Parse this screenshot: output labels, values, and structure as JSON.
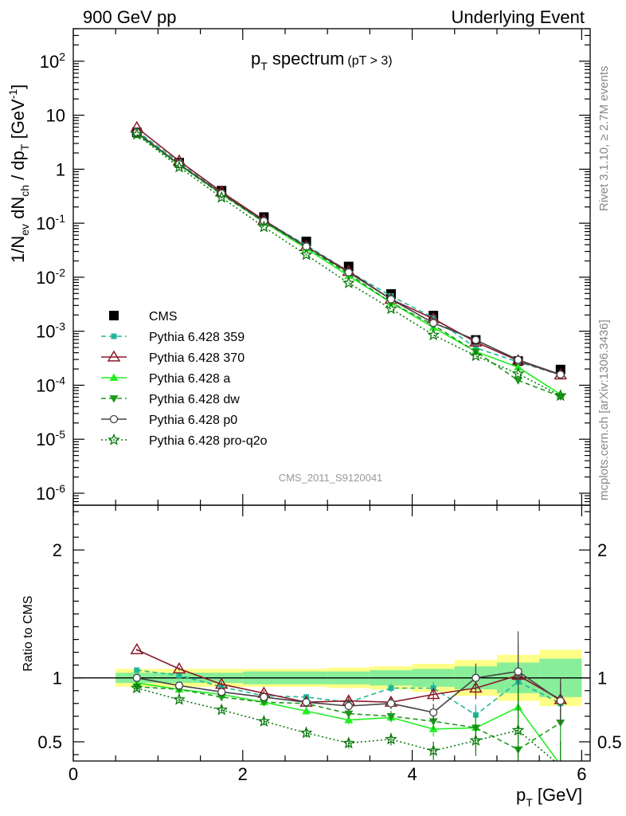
{
  "header": {
    "left": "900 GeV pp",
    "right": "Underlying Event"
  },
  "side": {
    "rivet": "Rivet 3.1.10, ≥ 2.7M events",
    "source": "mcplots.cern.ch [arXiv:1306.3436]"
  },
  "chart_data": [
    {
      "type": "line",
      "title_main": "p",
      "title_sub": "T",
      "title_rest": " spectrum",
      "title_cut": "(pT >  3)",
      "watermark": "CMS_2011_S9120041",
      "ylabel": "1/N_ev dN_ch / dp_T [GeV^-1]",
      "yscale": "log",
      "ylim": [
        6e-07,
        400
      ],
      "xlim": [
        0,
        6.1
      ],
      "y_tick_labels": [
        "10^-6",
        "10^-5",
        "10^-4",
        "10^-3",
        "10^-2",
        "10^-1",
        "1",
        "10",
        "10^2"
      ],
      "legend": {
        "placement": "bottom-left"
      },
      "x": [
        0.75,
        1.25,
        1.75,
        2.25,
        2.75,
        3.25,
        3.75,
        4.25,
        4.75,
        5.25,
        5.75
      ],
      "series": [
        {
          "name": "CMS",
          "color": "#000000",
          "marker": "square-filled",
          "line": "none",
          "values": [
            4.8,
            1.32,
            0.4,
            0.13,
            0.046,
            0.0158,
            0.0049,
            0.00195,
            0.00069,
            0.00028,
            0.000195
          ]
        },
        {
          "name": "Pythia 6.428 359",
          "color": "#1fb89a",
          "marker": "square-small",
          "line": "dashed",
          "values": [
            5.1,
            1.35,
            0.37,
            0.112,
            0.039,
            0.0128,
            0.0045,
            0.00178,
            0.00049,
            0.00027,
            0.000155
          ]
        },
        {
          "name": "Pythia 6.428 370",
          "color": "#8b1a2b",
          "marker": "triangle-open",
          "line": "solid",
          "values": [
            5.9,
            1.42,
            0.38,
            0.114,
            0.037,
            0.0128,
            0.0039,
            0.0017,
            0.00063,
            0.000285,
            0.000155
          ]
        },
        {
          "name": "Pythia 6.428 a",
          "color": "#22ee22",
          "marker": "triangle-filled",
          "line": "solid",
          "values": [
            4.6,
            1.2,
            0.35,
            0.105,
            0.034,
            0.0106,
            0.0034,
            0.00117,
            0.00042,
            0.000215,
            6.8e-05
          ]
        },
        {
          "name": "Pythia 6.428 dw",
          "color": "#1a9a1a",
          "marker": "triangle-down-filled",
          "line": "dashed",
          "values": [
            4.45,
            1.2,
            0.34,
            0.105,
            0.036,
            0.0114,
            0.0034,
            0.0013,
            0.00042,
            0.000123,
            6.2e-05
          ]
        },
        {
          "name": "Pythia 6.428 p0",
          "color": "#444444",
          "marker": "circle-open",
          "line": "solid",
          "values": [
            4.8,
            1.24,
            0.355,
            0.11,
            0.037,
            0.0123,
            0.0039,
            0.00142,
            0.00069,
            0.000295,
            0.000158
          ]
        },
        {
          "name": "Pythia 6.428 pro-q2o",
          "color": "#0a7a0a",
          "marker": "star-open",
          "line": "dotted",
          "values": [
            4.4,
            1.09,
            0.3,
            0.085,
            0.026,
            0.0078,
            0.0026,
            0.00085,
            0.00035,
            0.000163,
            6.4e-05
          ]
        }
      ]
    },
    {
      "type": "line",
      "ylabel": "Ratio to CMS",
      "ylim": [
        0.35,
        2.35
      ],
      "xlim": [
        0,
        6.1
      ],
      "xlabel_main": "p",
      "xlabel_sub": "T",
      "xlabel_unit": " [GeV]",
      "x_tick_labels": [
        "0",
        "2",
        "4",
        "6"
      ],
      "y_tick_labels": [
        "0.5",
        "1",
        "2"
      ],
      "reference_line": 1,
      "x": [
        0.75,
        1.25,
        1.75,
        2.25,
        2.75,
        3.25,
        3.75,
        4.25,
        4.75,
        5.25,
        5.75
      ],
      "band_edges": [
        0.5,
        1.0,
        1.5,
        2.0,
        2.5,
        3.0,
        3.5,
        4.0,
        4.5,
        5.0,
        5.5,
        6.0
      ],
      "band_stat": [
        0.04,
        0.04,
        0.04,
        0.05,
        0.05,
        0.05,
        0.06,
        0.07,
        0.09,
        0.12,
        0.15
      ],
      "band_total": [
        0.07,
        0.07,
        0.07,
        0.07,
        0.07,
        0.08,
        0.09,
        0.11,
        0.14,
        0.18,
        0.22
      ],
      "band_colors": {
        "total": "#ffff88",
        "stat": "#88ee99"
      },
      "series": [
        {
          "name": "Pythia 6.428 359",
          "values": [
            1.06,
            1.02,
            0.93,
            0.86,
            0.85,
            0.81,
            0.92,
            0.92,
            0.71,
            0.97,
            0.8
          ]
        },
        {
          "name": "Pythia 6.428 370",
          "values": [
            1.22,
            1.07,
            0.95,
            0.88,
            0.81,
            0.82,
            0.81,
            0.87,
            0.92,
            1.02,
            0.83
          ]
        },
        {
          "name": "Pythia 6.428 a",
          "values": [
            0.96,
            0.91,
            0.87,
            0.81,
            0.74,
            0.67,
            0.69,
            0.6,
            0.61,
            0.77,
            0.32
          ]
        },
        {
          "name": "Pythia 6.428 dw",
          "values": [
            0.93,
            0.91,
            0.85,
            0.81,
            0.8,
            0.72,
            0.7,
            0.66,
            0.61,
            0.44,
            0.65
          ]
        },
        {
          "name": "Pythia 6.428 p0",
          "values": [
            1.0,
            0.94,
            0.89,
            0.85,
            0.81,
            0.78,
            0.8,
            0.73,
            1.0,
            1.05,
            0.82
          ]
        },
        {
          "name": "Pythia 6.428 pro-q2o",
          "values": [
            0.92,
            0.83,
            0.75,
            0.66,
            0.57,
            0.49,
            0.52,
            0.43,
            0.51,
            0.59,
            0.31
          ]
        }
      ],
      "error_bars": [
        0.01,
        0.015,
        0.02,
        0.025,
        0.03,
        0.035,
        0.04,
        0.06,
        0.1,
        0.28,
        0.16
      ]
    }
  ]
}
